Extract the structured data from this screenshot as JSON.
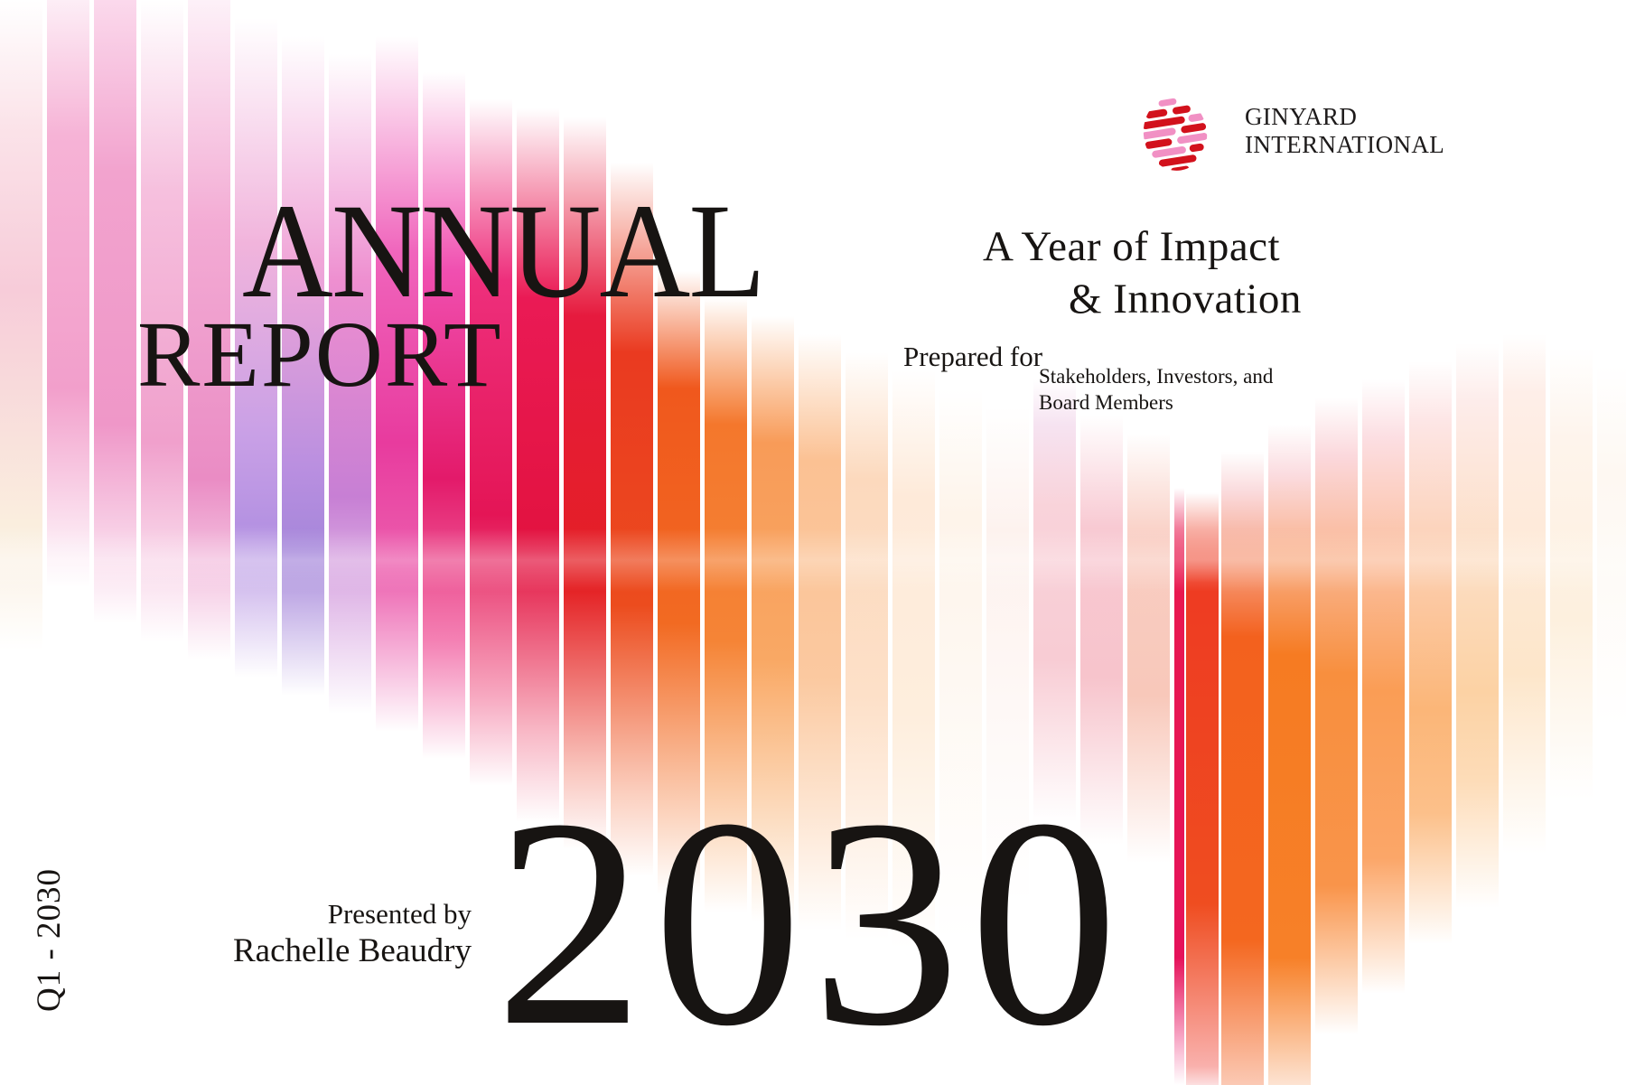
{
  "brand": {
    "line1": "GINYARD",
    "line2": "INTERNATIONAL",
    "logo_colors": {
      "red": "#d2111c",
      "pink": "#f190c4"
    }
  },
  "title": {
    "line1": "ANNUAL",
    "line2": "REPORT"
  },
  "subtitle": {
    "line1": "A Year of Impact",
    "line2": "& Innovation"
  },
  "prepared_for": {
    "label": "Prepared for",
    "recipients": "Stakeholders, Investors, and Board Members"
  },
  "presented_by": {
    "label": "Presented by",
    "name": "Rachelle Beaudry"
  },
  "year": "2030",
  "period": "Q1 - 2030",
  "palette": {
    "pink": "#f29ccb",
    "magenta": "#e83b9e",
    "purple": "#b592e2",
    "crimson": "#e41556",
    "red": "#e42023",
    "orange": "#f3611e",
    "peach": "#fbc9a0",
    "text": "#171412"
  }
}
